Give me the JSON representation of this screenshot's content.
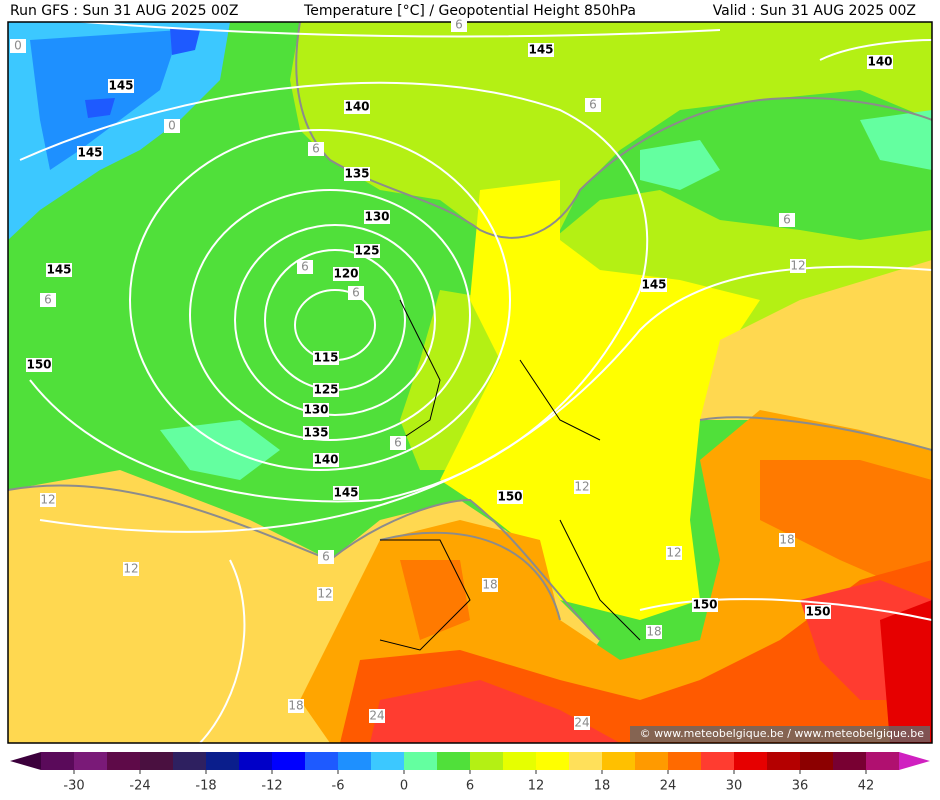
{
  "header": {
    "left": "Run GFS : Sun 31 AUG 2025 00Z",
    "center": "Temperature [°C] / Geopotential Height 850hPa",
    "right": "Valid : Sun 31 AUG 2025 00Z"
  },
  "height_labels": [
    145,
    140,
    145,
    140,
    145,
    135,
    130,
    125,
    120,
    145,
    145,
    150,
    115,
    125,
    130,
    135,
    140,
    145,
    150,
    150,
    150
  ],
  "temperature_labels": [
    0,
    0,
    6,
    6,
    6,
    6,
    6,
    6,
    12,
    6,
    6,
    12,
    12,
    12,
    12,
    18,
    12,
    18,
    18,
    18,
    24,
    24,
    6
  ],
  "watermark": "© www.meteobelgique.be / www.meteobelgique.be",
  "colorbar": {
    "lim": [
      -33,
      45
    ],
    "ticks": [
      -30,
      -24,
      -18,
      -12,
      -6,
      0,
      6,
      12,
      18,
      24,
      30,
      36,
      42
    ],
    "colors": [
      "#5a0a5a",
      "#7a1a78",
      "#5e0a48",
      "#4a1040",
      "#2e2060",
      "#0a1e8c",
      "#0000c8",
      "#0000ff",
      "#1e5aff",
      "#1e90ff",
      "#3cc8ff",
      "#64ffa0",
      "#50e03a",
      "#b4f014",
      "#e6ff00",
      "#ffff00",
      "#ffe05a",
      "#ffc000",
      "#ff9a00",
      "#ff6a00",
      "#ff3c30",
      "#e60000",
      "#b40000",
      "#8c0000",
      "#780032",
      "#b01070"
    ]
  }
}
